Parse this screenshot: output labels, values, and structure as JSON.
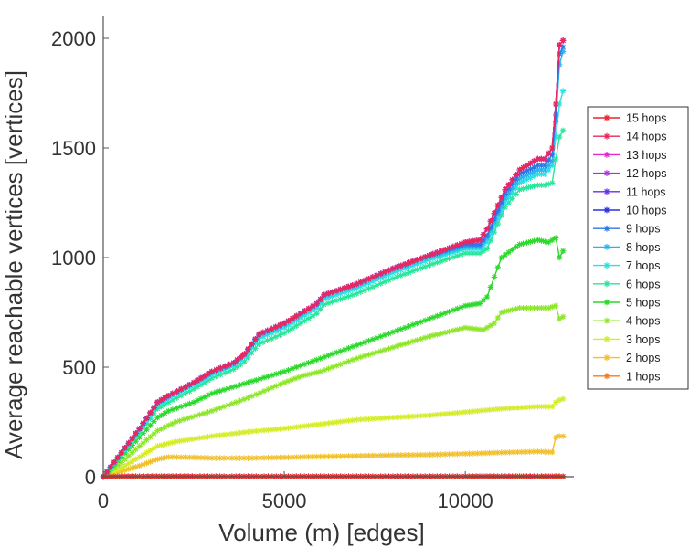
{
  "chart_data": {
    "type": "line",
    "title": "",
    "xlabel": "Volume (m) [edges]",
    "ylabel": "Average reachable vertices [vertices]",
    "xlim": [
      0,
      13000
    ],
    "ylim": [
      0,
      2100
    ],
    "xticks": [
      {
        "value": 0,
        "label": "0"
      },
      {
        "value": 5000,
        "label": "5000"
      },
      {
        "value": 10000,
        "label": "10000"
      }
    ],
    "yticks": [
      {
        "value": 0,
        "label": "0"
      },
      {
        "value": 500,
        "label": "500"
      },
      {
        "value": 1000,
        "label": "1000"
      },
      {
        "value": 1500,
        "label": "1500"
      },
      {
        "value": 2000,
        "label": "2000"
      }
    ],
    "grid": false,
    "legend_position": "right",
    "marker": "star",
    "series": [
      {
        "name": "15 hops",
        "color": "#e8262e",
        "x": [
          0,
          200,
          600,
          1000,
          1600,
          3000,
          4000,
          5000,
          6000,
          7000,
          8000,
          9000,
          10000,
          10500,
          11000,
          11500,
          12000,
          12500,
          12700
        ],
        "y": [
          0,
          1,
          2,
          2,
          2,
          2,
          2,
          2,
          2,
          2,
          2,
          2,
          2,
          2,
          2,
          2,
          2,
          2,
          2
        ]
      },
      {
        "name": "14 hops",
        "color": "#e8285a",
        "x": [
          0,
          500,
          1000,
          1500,
          1800,
          2500,
          3000,
          3600,
          3900,
          4300,
          5000,
          5900,
          6100,
          7000,
          8000,
          9000,
          10000,
          10400,
          10600,
          11100,
          11500,
          12000,
          12200,
          12400,
          12500,
          12600,
          12700
        ],
        "y": [
          0,
          110,
          220,
          340,
          370,
          430,
          480,
          520,
          560,
          650,
          700,
          790,
          830,
          880,
          950,
          1010,
          1070,
          1080,
          1130,
          1310,
          1400,
          1450,
          1450,
          1500,
          1700,
          1970,
          1990
        ]
      },
      {
        "name": "13 hops",
        "color": "#e02ad0",
        "x": [
          0,
          500,
          1000,
          1500,
          1800,
          2500,
          3000,
          3600,
          3900,
          4300,
          5000,
          5900,
          6100,
          7000,
          8000,
          9000,
          10000,
          10400,
          10600,
          11100,
          11500,
          12000,
          12200,
          12400,
          12500,
          12600,
          12700
        ],
        "y": [
          0,
          110,
          220,
          340,
          370,
          430,
          480,
          520,
          560,
          650,
          700,
          790,
          830,
          880,
          950,
          1010,
          1070,
          1080,
          1130,
          1310,
          1400,
          1450,
          1450,
          1500,
          1700,
          1970,
          1990
        ]
      },
      {
        "name": "12 hops",
        "color": "#a832e0",
        "x": [
          0,
          500,
          1000,
          1500,
          1800,
          2500,
          3000,
          3600,
          3900,
          4300,
          5000,
          5900,
          6100,
          7000,
          8000,
          9000,
          10000,
          10400,
          10600,
          11100,
          11500,
          12000,
          12200,
          12400,
          12500,
          12600,
          12700
        ],
        "y": [
          0,
          110,
          220,
          340,
          370,
          430,
          480,
          520,
          560,
          650,
          700,
          790,
          830,
          880,
          950,
          1010,
          1070,
          1080,
          1130,
          1310,
          1400,
          1450,
          1450,
          1500,
          1700,
          1970,
          1990
        ]
      },
      {
        "name": "11 hops",
        "color": "#6a2ee0",
        "x": [
          0,
          500,
          1000,
          1500,
          1800,
          2500,
          3000,
          3600,
          3900,
          4300,
          5000,
          5900,
          6100,
          7000,
          8000,
          9000,
          10000,
          10400,
          10600,
          11100,
          11500,
          12000,
          12200,
          12400,
          12500,
          12600,
          12700
        ],
        "y": [
          0,
          110,
          220,
          340,
          370,
          430,
          480,
          520,
          560,
          650,
          700,
          790,
          830,
          880,
          950,
          1010,
          1070,
          1080,
          1130,
          1310,
          1400,
          1450,
          1450,
          1500,
          1700,
          1970,
          1990
        ]
      },
      {
        "name": "10 hops",
        "color": "#2a32e0",
        "x": [
          0,
          500,
          1000,
          1500,
          1800,
          2500,
          3000,
          3600,
          3900,
          4300,
          5000,
          5900,
          6100,
          7000,
          8000,
          9000,
          10000,
          10400,
          10600,
          11100,
          11500,
          12000,
          12200,
          12400,
          12500,
          12600,
          12700
        ],
        "y": [
          0,
          110,
          220,
          340,
          370,
          430,
          480,
          520,
          560,
          650,
          700,
          790,
          830,
          880,
          950,
          1010,
          1070,
          1080,
          1130,
          1310,
          1400,
          1450,
          1450,
          1500,
          1700,
          1970,
          1990
        ]
      },
      {
        "name": "9 hops",
        "color": "#2a78e8",
        "x": [
          0,
          500,
          1000,
          1500,
          1800,
          2500,
          3000,
          3600,
          3900,
          4300,
          5000,
          5900,
          6100,
          7000,
          8000,
          9000,
          10000,
          10400,
          10600,
          11100,
          11500,
          12000,
          12200,
          12400,
          12500,
          12600,
          12700
        ],
        "y": [
          0,
          110,
          220,
          340,
          370,
          430,
          480,
          520,
          560,
          650,
          700,
          790,
          830,
          880,
          950,
          1010,
          1060,
          1060,
          1100,
          1290,
          1380,
          1420,
          1420,
          1470,
          1650,
          1930,
          1960
        ]
      },
      {
        "name": "8 hops",
        "color": "#2ab4ee",
        "x": [
          0,
          500,
          1000,
          1500,
          1800,
          2500,
          3000,
          3600,
          3900,
          4300,
          5000,
          5900,
          6100,
          7000,
          8000,
          9000,
          10000,
          10400,
          10600,
          11100,
          11500,
          12000,
          12200,
          12400,
          12500,
          12600,
          12700
        ],
        "y": [
          0,
          108,
          218,
          336,
          366,
          426,
          476,
          516,
          556,
          645,
          695,
          785,
          825,
          875,
          945,
          1005,
          1050,
          1050,
          1090,
          1270,
          1360,
          1400,
          1400,
          1440,
          1620,
          1880,
          1940
        ]
      },
      {
        "name": "7 hops",
        "color": "#2ae0e0",
        "x": [
          0,
          500,
          1000,
          1500,
          1800,
          2500,
          3000,
          3600,
          3900,
          4300,
          5000,
          5900,
          6100,
          7000,
          8000,
          9000,
          10000,
          10400,
          10600,
          11100,
          11500,
          12000,
          12200,
          12400,
          12500,
          12600,
          12700
        ],
        "y": [
          0,
          105,
          212,
          328,
          358,
          418,
          466,
          506,
          546,
          630,
          680,
          770,
          810,
          860,
          930,
          990,
          1040,
          1040,
          1070,
          1250,
          1340,
          1380,
          1380,
          1420,
          1550,
          1700,
          1760
        ]
      },
      {
        "name": "6 hops",
        "color": "#2ae69a",
        "x": [
          0,
          500,
          1000,
          1500,
          1800,
          2500,
          3000,
          3600,
          3900,
          4300,
          5000,
          5900,
          6100,
          7000,
          8000,
          9000,
          10000,
          10400,
          10600,
          11100,
          11500,
          12000,
          12200,
          12400,
          12500,
          12600,
          12700
        ],
        "y": [
          0,
          100,
          200,
          310,
          340,
          400,
          450,
          490,
          525,
          605,
          655,
          745,
          785,
          835,
          905,
          965,
          1020,
          1020,
          1040,
          1230,
          1310,
          1330,
          1330,
          1340,
          1450,
          1550,
          1580
        ]
      },
      {
        "name": "5 hops",
        "color": "#2cd82c",
        "x": [
          0,
          500,
          1000,
          1500,
          1800,
          2500,
          3000,
          4000,
          5000,
          6000,
          7000,
          8000,
          9000,
          10000,
          10400,
          10600,
          11000,
          11500,
          12000,
          12300,
          12500,
          12600,
          12700
        ],
        "y": [
          0,
          90,
          180,
          270,
          300,
          340,
          380,
          430,
          480,
          540,
          600,
          660,
          720,
          780,
          790,
          820,
          1000,
          1060,
          1080,
          1070,
          1090,
          1000,
          1030
        ]
      },
      {
        "name": "4 hops",
        "color": "#8ee62a",
        "x": [
          0,
          500,
          1000,
          1500,
          2000,
          3000,
          4000,
          5000,
          5500,
          6000,
          7000,
          8000,
          9000,
          10000,
          10500,
          10800,
          11000,
          11500,
          12000,
          12300,
          12500,
          12600,
          12700
        ],
        "y": [
          0,
          65,
          140,
          210,
          250,
          300,
          360,
          430,
          460,
          480,
          540,
          590,
          640,
          680,
          670,
          700,
          750,
          770,
          770,
          770,
          780,
          720,
          730
        ]
      },
      {
        "name": "3 hops",
        "color": "#d4ec2a",
        "x": [
          0,
          500,
          1000,
          1500,
          2000,
          3000,
          4000,
          5000,
          6000,
          7000,
          8000,
          9000,
          10000,
          11000,
          12000,
          12400,
          12500,
          12600,
          12700
        ],
        "y": [
          0,
          40,
          90,
          140,
          160,
          185,
          205,
          220,
          240,
          260,
          270,
          280,
          295,
          310,
          320,
          320,
          340,
          350,
          355
        ]
      },
      {
        "name": "2 hops",
        "color": "#f2c02a",
        "x": [
          0,
          500,
          1000,
          1500,
          1800,
          2500,
          3000,
          4000,
          5000,
          6000,
          7000,
          8000,
          9000,
          10000,
          11000,
          12000,
          12400,
          12500,
          12600,
          12700
        ],
        "y": [
          0,
          25,
          50,
          80,
          90,
          88,
          85,
          85,
          88,
          92,
          95,
          98,
          100,
          105,
          110,
          115,
          112,
          180,
          185,
          185
        ]
      },
      {
        "name": "1 hops",
        "color": "#f57a1e",
        "x": [
          0,
          1000,
          2000,
          4000,
          6000,
          8000,
          10000,
          12000,
          12700
        ],
        "y": [
          0,
          1,
          1,
          1,
          1,
          1,
          1,
          1,
          1
        ]
      }
    ]
  }
}
